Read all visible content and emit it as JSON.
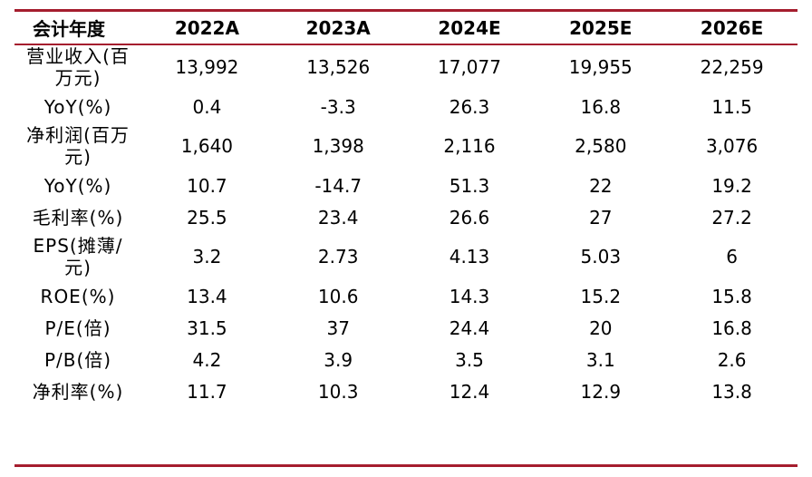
{
  "table": {
    "headers": [
      "会计年度",
      "2022A",
      "2023A",
      "2024E",
      "2025E",
      "2026E"
    ],
    "rows": [
      {
        "label": "营业收入(百万元)",
        "values": [
          "13,992",
          "13,526",
          "17,077",
          "19,955",
          "22,259"
        ]
      },
      {
        "label": "YoY(%)",
        "values": [
          "0.4",
          "-3.3",
          "26.3",
          "16.8",
          "11.5"
        ]
      },
      {
        "label": "净利润(百万元)",
        "values": [
          "1,640",
          "1,398",
          "2,116",
          "2,580",
          "3,076"
        ]
      },
      {
        "label": "YoY(%)",
        "values": [
          "10.7",
          "-14.7",
          "51.3",
          "22",
          "19.2"
        ]
      },
      {
        "label": "毛利率(%)",
        "values": [
          "25.5",
          "23.4",
          "26.6",
          "27",
          "27.2"
        ]
      },
      {
        "label": "EPS(摊薄/元)",
        "values": [
          "3.2",
          "2.73",
          "4.13",
          "5.03",
          "6"
        ]
      },
      {
        "label": "ROE(%)",
        "values": [
          "13.4",
          "10.6",
          "14.3",
          "15.2",
          "15.8"
        ]
      },
      {
        "label": "P/E(倍)",
        "values": [
          "31.5",
          "37",
          "24.4",
          "20",
          "16.8"
        ]
      },
      {
        "label": "P/B(倍)",
        "values": [
          "4.2",
          "3.9",
          "3.5",
          "3.1",
          "2.6"
        ]
      },
      {
        "label": "净利率(%)",
        "values": [
          "11.7",
          "10.3",
          "12.4",
          "12.9",
          "13.8"
        ]
      }
    ]
  },
  "colors": {
    "rule": "#a51d2e",
    "text": "#000000"
  }
}
